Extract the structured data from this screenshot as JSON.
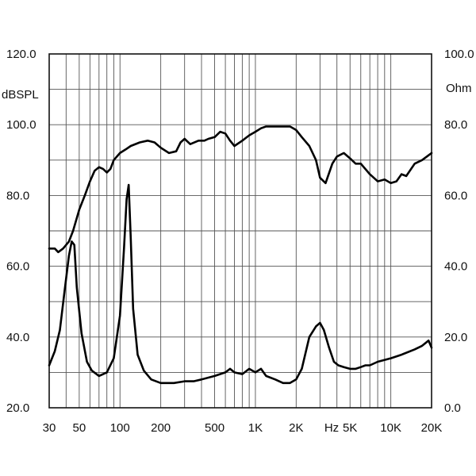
{
  "chart_data": {
    "type": "line",
    "title": "",
    "xlabel": "Hz",
    "ylabel_left": "dBSPL",
    "ylabel_right": "Ohm",
    "x_scale": "log",
    "xlim": [
      30,
      20000
    ],
    "ylim_left": [
      20,
      120
    ],
    "ylim_right": [
      0,
      100
    ],
    "grid": true,
    "x_ticks": [
      {
        "value": 30,
        "label": "30"
      },
      {
        "value": 50,
        "label": "50"
      },
      {
        "value": 100,
        "label": "100"
      },
      {
        "value": 200,
        "label": "200"
      },
      {
        "value": 500,
        "label": "500"
      },
      {
        "value": 1000,
        "label": "1K"
      },
      {
        "value": 2000,
        "label": "2K"
      },
      {
        "value": 5000,
        "label": "5K"
      },
      {
        "value": 10000,
        "label": "10K"
      },
      {
        "value": 20000,
        "label": "20K"
      }
    ],
    "y_ticks_left": [
      {
        "value": 120,
        "label": "120.0"
      },
      {
        "value": 100,
        "label": "100.0"
      },
      {
        "value": 80,
        "label": "80.0"
      },
      {
        "value": 60,
        "label": "60.0"
      },
      {
        "value": 40,
        "label": "40.0"
      },
      {
        "value": 20,
        "label": "20.0"
      }
    ],
    "y_ticks_right": [
      {
        "value": 100,
        "label": "100.0"
      },
      {
        "value": 80,
        "label": "80.0"
      },
      {
        "value": 60,
        "label": "60.0"
      },
      {
        "value": 40,
        "label": "40.0"
      },
      {
        "value": 20,
        "label": "20.0"
      },
      {
        "value": 0,
        "label": "0.0"
      }
    ],
    "series": [
      {
        "axis": "left",
        "x": [
          30,
          33,
          35,
          38,
          42,
          45,
          50,
          55,
          60,
          65,
          70,
          75,
          80,
          85,
          90,
          100,
          110,
          120,
          140,
          160,
          180,
          200,
          230,
          260,
          280,
          300,
          330,
          380,
          420,
          450,
          500,
          550,
          600,
          650,
          700,
          800,
          900,
          1000,
          1100,
          1200,
          1400,
          1600,
          1800,
          2000,
          2200,
          2500,
          2800,
          3000,
          3300,
          3700,
          4000,
          4500,
          5000,
          5500,
          6000,
          7000,
          8000,
          9000,
          10000,
          11000,
          12000,
          13000,
          15000,
          17000,
          20000
        ],
        "y": [
          65,
          65,
          64,
          65,
          67,
          70,
          76,
          80,
          84,
          87,
          88,
          87.5,
          86.5,
          87.5,
          90,
          92,
          93,
          94,
          95,
          95.5,
          95,
          93.5,
          92,
          92.5,
          95,
          96,
          94.5,
          95.5,
          95.5,
          96,
          96.5,
          98,
          97.5,
          95.5,
          94,
          95.5,
          97,
          98,
          99,
          99.5,
          99.5,
          99.5,
          99.5,
          98.5,
          96.5,
          94,
          90,
          85,
          83.5,
          89,
          91,
          92,
          90.5,
          89,
          89,
          86,
          84,
          84.5,
          83.5,
          84,
          86,
          85.5,
          89,
          90,
          92
        ]
      },
      {
        "axis": "right",
        "x": [
          30,
          33,
          36,
          39,
          42,
          44,
          46,
          48,
          52,
          57,
          62,
          70,
          80,
          90,
          100,
          107,
          112,
          116,
          120,
          125,
          135,
          150,
          170,
          200,
          250,
          300,
          350,
          400,
          500,
          600,
          650,
          700,
          800,
          900,
          1000,
          1100,
          1200,
          1400,
          1600,
          1800,
          2000,
          2200,
          2500,
          2800,
          3000,
          3200,
          3500,
          3800,
          4100,
          4500,
          5000,
          5500,
          6000,
          6500,
          7000,
          8000,
          10000,
          12000,
          15000,
          17000,
          19000,
          20000
        ],
        "y": [
          12,
          16,
          22,
          33,
          43,
          47,
          46,
          34,
          21,
          13,
          10.5,
          9,
          10,
          14,
          26,
          45,
          59,
          63,
          48,
          28,
          15,
          10.5,
          8,
          7,
          7,
          7.5,
          7.5,
          8,
          9,
          10,
          11,
          10,
          9.5,
          11,
          10,
          11,
          9,
          8,
          7,
          7,
          8,
          11,
          20,
          23,
          24,
          22,
          17,
          13,
          12,
          11.5,
          11,
          11,
          11.5,
          12,
          12,
          13,
          14,
          15,
          16.5,
          17.5,
          19,
          17
        ]
      }
    ]
  }
}
